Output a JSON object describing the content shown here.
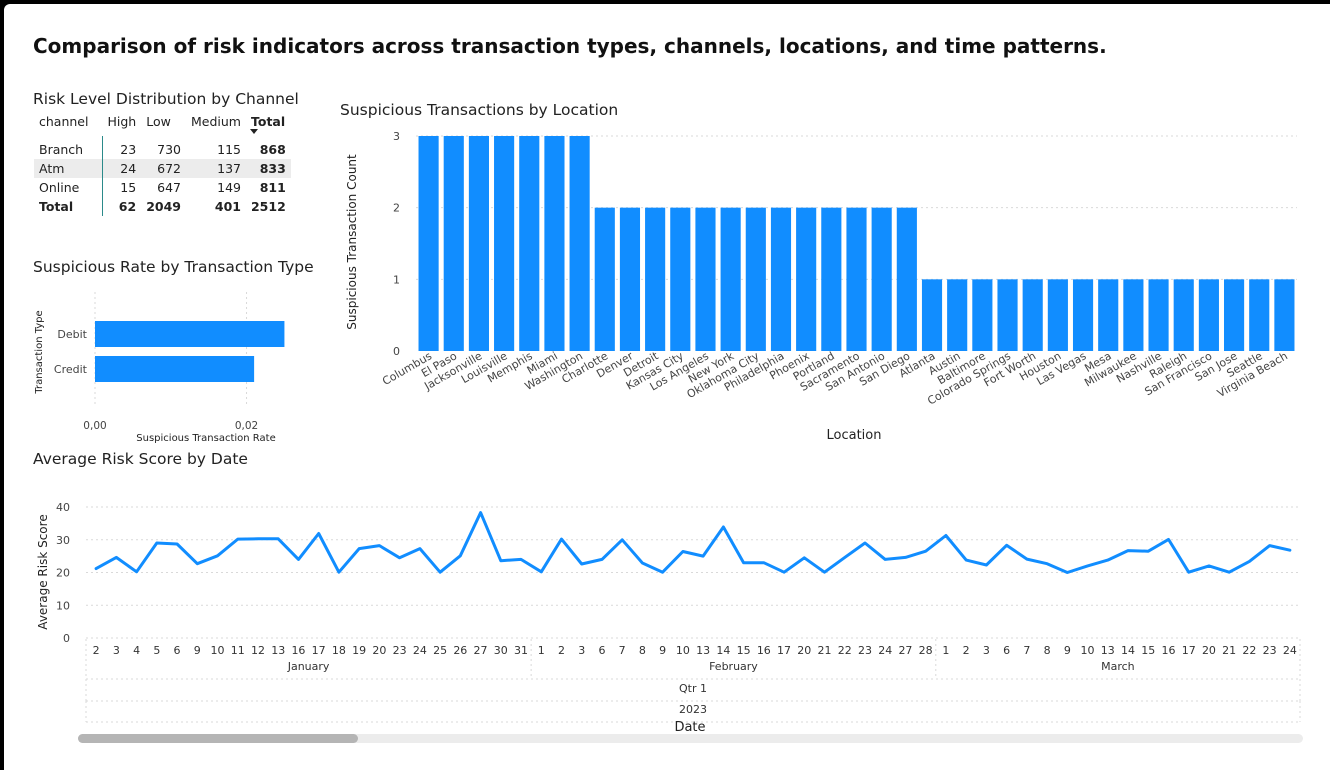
{
  "page": {
    "title": "Comparison of risk indicators across transaction types, channels, locations, and time patterns."
  },
  "colors": {
    "bar": "#118DFF",
    "grid": "#d9d9d9",
    "text": "#222222",
    "matrix_border": "#2b8a8a"
  },
  "matrix": {
    "title": "Risk Level Distribution by Channel",
    "headers": [
      "channel",
      "High",
      "Low",
      "Medium",
      "Total"
    ],
    "sorted_column_icon": "caret-down-icon",
    "rows": [
      {
        "label": "Branch",
        "high": "23",
        "low": "730",
        "medium": "115",
        "total": "868"
      },
      {
        "label": "Atm",
        "high": "24",
        "low": "672",
        "medium": "137",
        "total": "833"
      },
      {
        "label": "Online",
        "high": "15",
        "low": "647",
        "medium": "149",
        "total": "811"
      }
    ],
    "total_row": {
      "label": "Total",
      "high": "62",
      "low": "2049",
      "medium": "401",
      "total": "2512"
    }
  },
  "chart_data": [
    {
      "id": "suspicious-rate",
      "type": "bar",
      "orientation": "horizontal",
      "title": "Suspicious Rate by Transaction Type",
      "xlabel": "Suspicious Transaction Rate",
      "ylabel": "Transaction Type",
      "categories": [
        "Debit",
        "Credit"
      ],
      "values": [
        0.025,
        0.021
      ],
      "xlim": [
        0,
        0.026
      ],
      "xticks": [
        {
          "value": 0,
          "label": "0,00"
        },
        {
          "value": 0.02,
          "label": "0,02"
        }
      ],
      "grid": true
    },
    {
      "id": "location",
      "type": "bar",
      "title": "Suspicious Transactions by Location",
      "xlabel": "Location",
      "ylabel": "Suspicious Transaction Count",
      "categories": [
        "Columbus",
        "El Paso",
        "Jacksonville",
        "Louisville",
        "Memphis",
        "Miami",
        "Washington",
        "Charlotte",
        "Denver",
        "Detroit",
        "Kansas City",
        "Los Angeles",
        "New York",
        "Oklahoma City",
        "Philadelphia",
        "Phoenix",
        "Portland",
        "Sacramento",
        "San Antonio",
        "San Diego",
        "Atlanta",
        "Austin",
        "Baltimore",
        "Colorado Springs",
        "Fort Worth",
        "Houston",
        "Las Vegas",
        "Mesa",
        "Milwaukee",
        "Nashville",
        "Raleigh",
        "San Francisco",
        "San Jose",
        "Seattle",
        "Virginia Beach"
      ],
      "values": [
        3,
        3,
        3,
        3,
        3,
        3,
        3,
        2,
        2,
        2,
        2,
        2,
        2,
        2,
        2,
        2,
        2,
        2,
        2,
        2,
        1,
        1,
        1,
        1,
        1,
        1,
        1,
        1,
        1,
        1,
        1,
        1,
        1,
        1,
        1
      ],
      "ylim": [
        0,
        3
      ],
      "yticks": [
        0,
        1,
        2,
        3
      ],
      "grid": true
    },
    {
      "id": "risk-score",
      "type": "line",
      "title": "Average Risk Score by Date",
      "xlabel": "Date",
      "ylabel": "Average Risk Score",
      "ylim": [
        0,
        40
      ],
      "yticks": [
        0,
        10,
        20,
        30,
        40
      ],
      "grid": true,
      "x_levels": {
        "day": [
          "2",
          "3",
          "4",
          "5",
          "6",
          "9",
          "10",
          "11",
          "12",
          "13",
          "16",
          "17",
          "18",
          "19",
          "20",
          "23",
          "24",
          "25",
          "26",
          "27",
          "30",
          "31",
          "1",
          "2",
          "3",
          "6",
          "7",
          "8",
          "9",
          "10",
          "13",
          "14",
          "15",
          "16",
          "17",
          "20",
          "21",
          "22",
          "23",
          "24",
          "27",
          "28",
          "1",
          "2",
          "3",
          "6",
          "7",
          "8",
          "9",
          "10",
          "13",
          "14",
          "15",
          "16",
          "17",
          "20",
          "21",
          "22",
          "23",
          "24"
        ],
        "month": [
          {
            "label": "January",
            "count": 22
          },
          {
            "label": "February",
            "count": 20
          },
          {
            "label": "March",
            "count": 18
          }
        ],
        "quarter": [
          {
            "label": "Qtr 1",
            "count": 60
          }
        ],
        "year": [
          {
            "label": "2023",
            "count": 60
          }
        ]
      },
      "values": [
        21.2,
        24.6,
        20.2,
        29,
        28.7,
        22.7,
        25.1,
        30.2,
        30.3,
        30.3,
        24,
        31.9,
        20.1,
        27.3,
        28.2,
        24.5,
        27.3,
        20.1,
        25.1,
        38.3,
        23.6,
        24,
        20.2,
        30.2,
        22.6,
        24,
        30,
        22.9,
        20.1,
        26.4,
        25,
        33.9,
        23,
        23,
        20.1,
        24.5,
        20.1,
        24.6,
        29,
        24,
        24.6,
        26.5,
        31.3,
        23.8,
        22.3,
        28.3,
        24.1,
        22.7,
        20,
        22,
        23.8,
        26.7,
        26.5,
        30.1,
        20.1,
        22,
        20.1,
        23.4,
        28.2,
        26.8
      ]
    }
  ]
}
